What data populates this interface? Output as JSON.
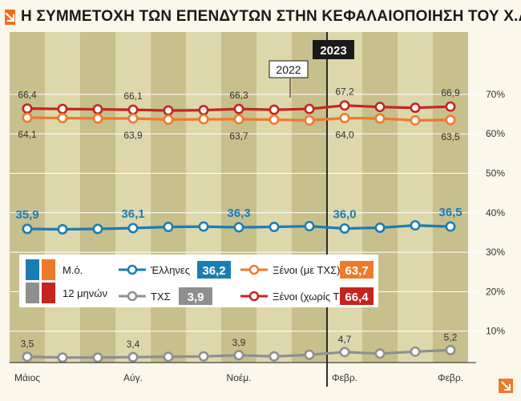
{
  "header": {
    "title": "Η ΣΥΜΜΕΤΟΧΗ ΤΩΝ ΕΠΕΝΔΥΤΩΝ ΣΤΗΝ ΚΕΦΑΛΑΙΟΠΟΙΗΣΗ ΤΟΥ Χ.Α.",
    "icon": "arrow-down-right-icon"
  },
  "colors": {
    "blue": "#1b7db3",
    "orange": "#ef7a2c",
    "red": "#c4261f",
    "gray": "#8f8f8f",
    "band_dark": "#c7bf8c",
    "band_light": "#ddd7ac",
    "background": "#fbf7ea"
  },
  "chart_data": {
    "type": "line",
    "title": "Η ΣΥΜΜΕΤΟΧΗ ΤΩΝ ΕΠΕΝΔΥΤΩΝ ΣΤΗΝ ΚΕΦΑΛΑΙΟΠΟΙΗΣΗ ΤΟΥ Χ.Α.",
    "x_labels": [
      "Μάιος",
      "Αύγ.",
      "Νοέμ.",
      "Φεβρ.",
      "Φεβρ."
    ],
    "year_labels": [
      "2022",
      "2023"
    ],
    "yticks": [
      "10%",
      "20%",
      "30%",
      "40%",
      "50%",
      "60%",
      "70%"
    ],
    "ylim": [
      0,
      75
    ],
    "n_points": 13,
    "series": [
      {
        "name": "Ξένοι (χωρίς ΤΧΣ)",
        "color": "#c4261f",
        "values": [
          66.4,
          66.3,
          66.2,
          66.1,
          65.9,
          66.0,
          66.3,
          66.1,
          66.3,
          67.2,
          66.8,
          66.6,
          66.9
        ],
        "labels": [
          "66,4",
          "66,1",
          "66,3",
          "67,2",
          "66,9"
        ],
        "label_idx": [
          0,
          3,
          6,
          9,
          12
        ]
      },
      {
        "name": "Ξένοι (με ΤΧΣ)",
        "color": "#ef7a2c",
        "values": [
          64.1,
          64.0,
          63.9,
          63.9,
          63.6,
          63.7,
          63.7,
          63.6,
          63.4,
          64.0,
          63.9,
          63.4,
          63.5
        ],
        "labels": [
          "64,1",
          "63,9",
          "63,7",
          "64,0",
          "63,5"
        ],
        "label_idx": [
          0,
          3,
          6,
          9,
          12
        ]
      },
      {
        "name": "Έλληνες",
        "color": "#1b7db3",
        "values": [
          35.9,
          35.8,
          35.9,
          36.1,
          36.4,
          36.5,
          36.3,
          36.4,
          36.6,
          36.0,
          36.2,
          36.8,
          36.5
        ],
        "labels": [
          "35,9",
          "36,1",
          "36,3",
          "36,0",
          "36,5"
        ],
        "label_idx": [
          0,
          3,
          6,
          9,
          12
        ]
      },
      {
        "name": "ΤΧΣ",
        "color": "#8f8f8f",
        "values": [
          3.5,
          3.3,
          3.3,
          3.4,
          3.5,
          3.6,
          3.9,
          3.6,
          4.0,
          4.7,
          4.3,
          4.8,
          5.2
        ],
        "labels": [
          "3,5",
          "3,4",
          "3,9",
          "4,7",
          "5,2"
        ],
        "label_idx": [
          0,
          3,
          6,
          9,
          12
        ]
      }
    ],
    "legend": {
      "placement": "bottom-left",
      "avg_label": "Μ.ό.",
      "months_label": "12 μηνών",
      "entries": [
        {
          "name": "Έλληνες",
          "avg": "36,2",
          "color": "#1b7db3"
        },
        {
          "name": "Ξένοι (με ΤΧΣ)",
          "avg": "63,7",
          "color": "#ef7a2c"
        },
        {
          "name": "ΤΧΣ",
          "avg": "3,9",
          "color": "#8f8f8f"
        },
        {
          "name": "Ξένοι (χωρίς ΤΧΣ)",
          "avg": "66,4",
          "color": "#c4261f"
        }
      ]
    }
  }
}
